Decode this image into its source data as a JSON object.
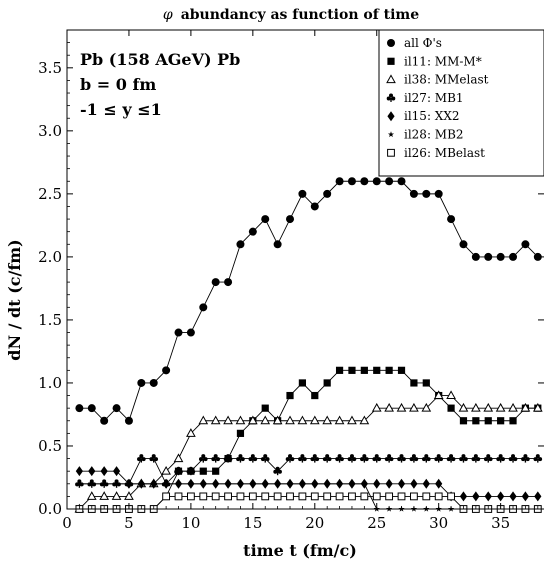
{
  "chart_data": {
    "type": "line",
    "title": "abundancy as function of time",
    "title_symbol": "φ",
    "xlabel": "time t (fm/c)",
    "ylabel": "dN / dt (c/fm)",
    "xlim": [
      0,
      38.5
    ],
    "ylim": [
      0,
      3.8
    ],
    "xticks": [
      0,
      5,
      10,
      15,
      20,
      25,
      30,
      35
    ],
    "yticks": [
      0.0,
      0.5,
      1.0,
      1.5,
      2.0,
      2.5,
      3.0,
      3.5
    ],
    "grid": false,
    "legend_position": "top-right",
    "annotations": [
      "Pb (158 AGeV) Pb",
      "b = 0 fm",
      "-1 ≤ y ≤1"
    ],
    "series": [
      {
        "name": "all Φ's",
        "marker": "filled-circle",
        "x": [
          1,
          2,
          3,
          4,
          5,
          6,
          7,
          8,
          9,
          10,
          11,
          12,
          13,
          14,
          15,
          16,
          17,
          18,
          19,
          20,
          21,
          22,
          23,
          24,
          25,
          26,
          27,
          28,
          29,
          30,
          31,
          32,
          33,
          34,
          35,
          36,
          37,
          38
        ],
        "values": [
          0.8,
          0.8,
          0.7,
          0.8,
          0.7,
          1.0,
          1.0,
          1.1,
          1.4,
          1.4,
          1.6,
          1.8,
          1.8,
          2.1,
          2.2,
          2.3,
          2.1,
          2.3,
          2.5,
          2.4,
          2.5,
          2.6,
          2.6,
          2.6,
          2.6,
          2.6,
          2.6,
          2.5,
          2.5,
          2.5,
          2.3,
          2.1,
          2.0,
          2.0,
          2.0,
          2.0,
          2.1,
          2.0
        ]
      },
      {
        "name": "il11: MM-M*",
        "marker": "filled-square",
        "x": [
          1,
          2,
          3,
          4,
          5,
          6,
          7,
          8,
          9,
          10,
          11,
          12,
          13,
          14,
          15,
          16,
          17,
          18,
          19,
          20,
          21,
          22,
          23,
          24,
          25,
          26,
          27,
          28,
          29,
          30,
          31,
          32,
          33,
          34,
          35,
          36,
          37,
          38
        ],
        "values": [
          0,
          0,
          0,
          0,
          0,
          0,
          0,
          0.1,
          0.3,
          0.3,
          0.3,
          0.3,
          0.4,
          0.6,
          0.7,
          0.8,
          0.7,
          0.9,
          1.0,
          0.9,
          1.0,
          1.1,
          1.1,
          1.1,
          1.1,
          1.1,
          1.1,
          1.0,
          1.0,
          0.9,
          0.8,
          0.7,
          0.7,
          0.7,
          0.7,
          0.7,
          0.8,
          0.8
        ]
      },
      {
        "name": "il38: MMelast",
        "marker": "open-triangle",
        "x": [
          1,
          2,
          3,
          4,
          5,
          6,
          7,
          8,
          9,
          10,
          11,
          12,
          13,
          14,
          15,
          16,
          17,
          18,
          19,
          20,
          21,
          22,
          23,
          24,
          25,
          26,
          27,
          28,
          29,
          30,
          31,
          32,
          33,
          34,
          35,
          36,
          37,
          38
        ],
        "values": [
          0,
          0.1,
          0.1,
          0.1,
          0.1,
          0.2,
          0.2,
          0.3,
          0.4,
          0.6,
          0.7,
          0.7,
          0.7,
          0.7,
          0.7,
          0.7,
          0.7,
          0.7,
          0.7,
          0.7,
          0.7,
          0.7,
          0.7,
          0.7,
          0.8,
          0.8,
          0.8,
          0.8,
          0.8,
          0.9,
          0.9,
          0.8,
          0.8,
          0.8,
          0.8,
          0.8,
          0.8,
          0.8
        ]
      },
      {
        "name": "il27: MB1",
        "marker": "club",
        "x": [
          1,
          2,
          3,
          4,
          5,
          6,
          7,
          8,
          9,
          10,
          11,
          12,
          13,
          14,
          15,
          16,
          17,
          18,
          19,
          20,
          21,
          22,
          23,
          24,
          25,
          26,
          27,
          28,
          29,
          30,
          31,
          32,
          33,
          34,
          35,
          36,
          37,
          38
        ],
        "values": [
          0.2,
          0.2,
          0.2,
          0.2,
          0.2,
          0.4,
          0.4,
          0.2,
          0.3,
          0.3,
          0.4,
          0.4,
          0.4,
          0.4,
          0.4,
          0.4,
          0.3,
          0.4,
          0.4,
          0.4,
          0.4,
          0.4,
          0.4,
          0.4,
          0.4,
          0.4,
          0.4,
          0.4,
          0.4,
          0.4,
          0.4,
          0.4,
          0.4,
          0.4,
          0.4,
          0.4,
          0.4,
          0.4
        ]
      },
      {
        "name": "il15: XX2",
        "marker": "filled-diamond",
        "x": [
          1,
          2,
          3,
          4,
          5,
          6,
          7,
          8,
          9,
          10,
          11,
          12,
          13,
          14,
          15,
          16,
          17,
          18,
          19,
          20,
          21,
          22,
          23,
          24,
          25,
          26,
          27,
          28,
          29,
          30,
          31,
          32,
          33,
          34,
          35,
          36,
          37,
          38
        ],
        "values": [
          0.3,
          0.3,
          0.3,
          0.3,
          0.2,
          0.2,
          0.2,
          0.2,
          0.2,
          0.2,
          0.2,
          0.2,
          0.2,
          0.2,
          0.2,
          0.2,
          0.2,
          0.2,
          0.2,
          0.2,
          0.2,
          0.2,
          0.2,
          0.2,
          0.2,
          0.2,
          0.2,
          0.2,
          0.2,
          0.2,
          0.1,
          0.1,
          0.1,
          0.1,
          0.1,
          0.1,
          0.1,
          0.1
        ]
      },
      {
        "name": "il28: MB2",
        "marker": "star",
        "x": [
          1,
          2,
          3,
          4,
          5,
          6,
          7,
          8,
          9,
          10,
          11,
          12,
          13,
          14,
          15,
          16,
          17,
          18,
          19,
          20,
          21,
          22,
          23,
          24,
          25,
          26,
          27,
          28,
          29,
          30,
          31,
          32,
          33,
          34,
          35,
          36,
          37,
          38
        ],
        "values": [
          0.2,
          0.2,
          0.2,
          0.2,
          0.2,
          0.2,
          0.2,
          0.2,
          0.2,
          0.2,
          0.2,
          0.2,
          0.2,
          0.2,
          0.2,
          0.2,
          0.2,
          0.2,
          0.2,
          0.2,
          0.2,
          0.2,
          0.2,
          0.2,
          0,
          0,
          0,
          0,
          0,
          0,
          0,
          0,
          0,
          0,
          0,
          0,
          0,
          0
        ]
      },
      {
        "name": "il26: MBelast",
        "marker": "open-square",
        "x": [
          1,
          2,
          3,
          4,
          5,
          6,
          7,
          8,
          9,
          10,
          11,
          12,
          13,
          14,
          15,
          16,
          17,
          18,
          19,
          20,
          21,
          22,
          23,
          24,
          25,
          26,
          27,
          28,
          29,
          30,
          31,
          32,
          33,
          34,
          35,
          36,
          37,
          38
        ],
        "values": [
          0,
          0,
          0,
          0,
          0,
          0,
          0,
          0.1,
          0.1,
          0.1,
          0.1,
          0.1,
          0.1,
          0.1,
          0.1,
          0.1,
          0.1,
          0.1,
          0.1,
          0.1,
          0.1,
          0.1,
          0.1,
          0.1,
          0.1,
          0.1,
          0.1,
          0.1,
          0.1,
          0.1,
          0.1,
          0,
          0,
          0,
          0,
          0,
          0,
          0
        ]
      }
    ]
  }
}
